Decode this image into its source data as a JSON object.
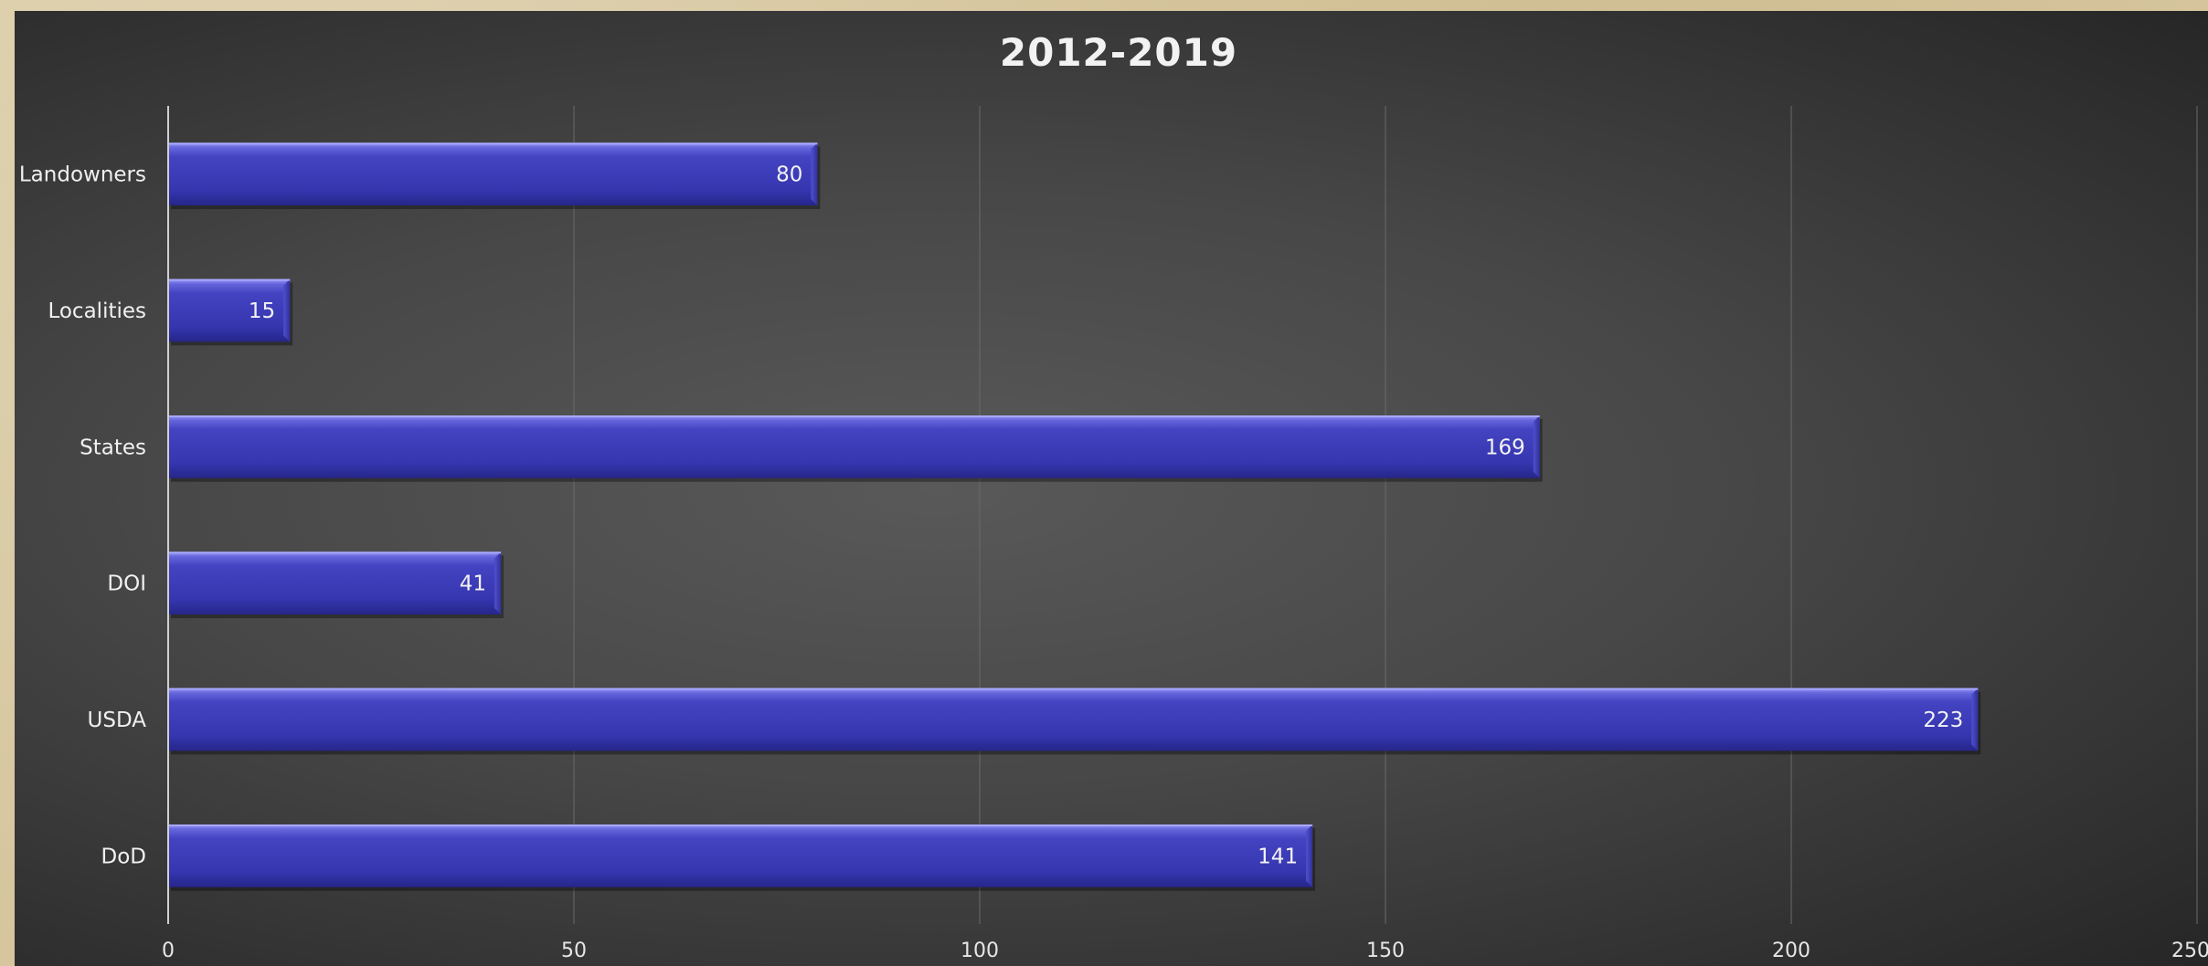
{
  "chart_data": {
    "type": "bar",
    "orientation": "horizontal",
    "title": "2012-2019",
    "categories": [
      "Landowners",
      "Localities",
      "States",
      "DOI",
      "USDA",
      "DoD"
    ],
    "values": [
      80,
      15,
      169,
      41,
      223,
      141
    ],
    "x_ticks": [
      "0",
      "50",
      "100",
      "150",
      "200",
      "250"
    ],
    "xlim": [
      0,
      250
    ],
    "grid": true,
    "legend": "none",
    "data_labels": true,
    "colors": {
      "bar": "#3a3ab4",
      "bar_top": "#8a8af0",
      "bar_dark": "#2b2b8c",
      "grid": "#6a6a6a",
      "axis": "#d0d0d0",
      "text": "#f0f0f0"
    }
  }
}
